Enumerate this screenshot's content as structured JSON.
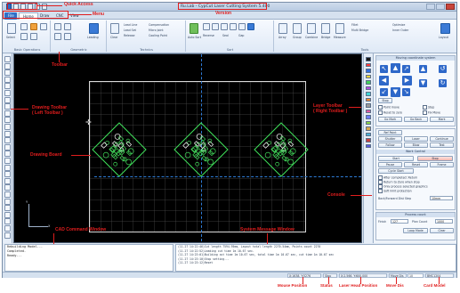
{
  "window": {
    "title": "Ru.Lab - CypCut Laser Cutting System 5.400",
    "accent": "#2f6fc7"
  },
  "menu": {
    "tabs": [
      "File",
      "Home",
      "Draw",
      "CNC",
      "View"
    ]
  },
  "ribbon": {
    "groups": [
      "Basic Operations",
      "Geometric",
      "Technics",
      "Sort",
      "Tools"
    ],
    "mini": [
      "Lead Line",
      "Compensation",
      "Micro Joint",
      "Cooling Point",
      "Lead Set",
      "Release",
      "Reverse",
      "Seal",
      "Gap",
      "Fillet",
      "Multi Bridge",
      "Optimize",
      "Inner Outer"
    ],
    "icon_labels": [
      "Select",
      "Leading",
      "Clear",
      "Auto Sort",
      "Array",
      "Group",
      "Combine",
      "Bridge",
      "Measure",
      "Layout"
    ]
  },
  "board": {
    "axis_x": "X",
    "axis_y": "Y"
  },
  "console": {
    "section1_title": "Moving coordinate system",
    "stop_label": "Stop",
    "checks": [
      "Point move",
      "Step",
      "Reset to zero",
      "Fix Move"
    ],
    "buttons": [
      "Go Mark",
      "Go Back",
      "Mark",
      "Ref Point",
      "Shutter",
      "Laser",
      "Continue",
      "Follow",
      "Blow",
      "Test",
      "Cycle Start",
      "Pause",
      "Reset",
      "Frame"
    ],
    "section2_title": "Work Control",
    "run_label": "Start",
    "options": [
      "After completed: Return",
      "Return to Zero when stop",
      "Only process selected graphics",
      "Soft limit protection"
    ],
    "mode_label": "Back/Forward Dist Step",
    "mode_value": "10mm",
    "section3_title": "Process count",
    "count_label": "Finish",
    "count_value": "127",
    "plan_label": "Plan Count",
    "plan_value": "1000",
    "count_buttons": [
      "Loop Mode",
      "Clear"
    ]
  },
  "command_window": {
    "lines": [
      "Rebuilding Model...",
      "Completed.",
      "Ready..."
    ]
  },
  "message_window": {
    "lines": [
      "(11-27 14:22:46)Cut length 7594.95mm, Layout total length 2270.54mm, Points count 2270",
      "(11-27 14:22:52)Leading cut time 1m 10.67 sec.",
      "(11-27 14:23:01)Building cut time 1m 10.67 sec, total time 1m 10.67 sec, cut time 1m 10.67 sec",
      "(11-27 14:23:10)Stop setting...",
      "(11-27 14:23:12)Reset"
    ]
  },
  "status": {
    "mouse_position": "X:1638, Y:5276",
    "status_text": "Stop",
    "laser_head_position": "X:2.566, Y:600.000",
    "move_dis": "Move Dis",
    "move_dis_value": "10",
    "card_model": "BMC1204"
  },
  "annotations": {
    "quick_access": "Quick Access",
    "version": "Version",
    "menu": "Menu",
    "toolbar": "Toolbar",
    "drawing_toolbar_1": "Drawing Toolbar",
    "drawing_toolbar_2": "( Left Toolbar )",
    "drawing_board": "Drawing Board",
    "layer_toolbar_1": "Layer Toolbar",
    "layer_toolbar_2": "( Right Toolbar )",
    "console": "Console",
    "cad_command": "CAD Command Window",
    "system_message": "System Message Window",
    "mouse_position": "Mouse Position",
    "status": "Status",
    "laser_head_position": "Laser Head Position",
    "move_dis": "Move Dis",
    "card_model": "Card Model"
  },
  "layer_colors": [
    "#1b1b1b",
    "#ff3b3b",
    "#2f6fe0",
    "#ffd93b",
    "#44d05a",
    "#b74be0",
    "#43d6d6",
    "#ff8a2e",
    "#9a9a9a",
    "#e05aa6",
    "#6b7cff",
    "#8bd34a",
    "#d8a64a",
    "#4ab0d8",
    "#c94040",
    "#5c5ce0"
  ]
}
